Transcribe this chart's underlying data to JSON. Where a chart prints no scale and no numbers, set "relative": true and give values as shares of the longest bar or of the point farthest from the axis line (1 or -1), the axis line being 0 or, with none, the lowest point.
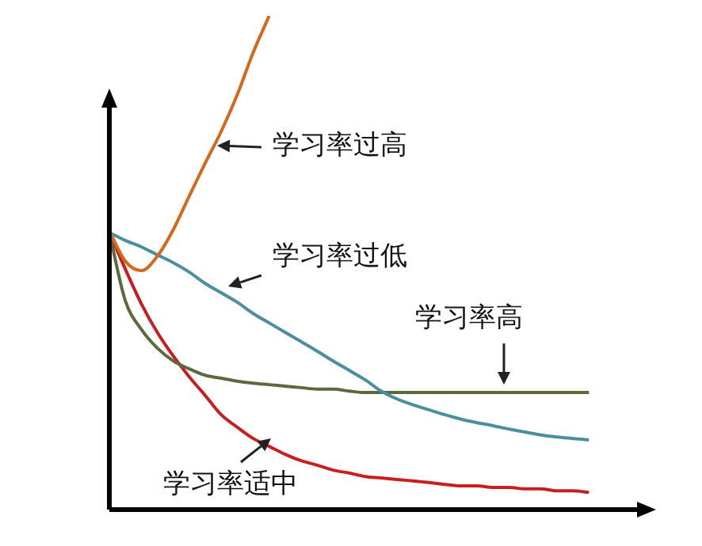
{
  "chart_data": {
    "type": "line",
    "relative": true,
    "legend": false,
    "marker": "none",
    "line_style": "solid",
    "categories": [
      null,
      null,
      null,
      null,
      null,
      null,
      null,
      null,
      null,
      null,
      null,
      null,
      null,
      null,
      null,
      null,
      null,
      null,
      null,
      null,
      null,
      null,
      null,
      null,
      null,
      null,
      null,
      null,
      null,
      null,
      null,
      null,
      null,
      null,
      null
    ],
    "series": [
      {
        "color": "#d4691c",
        "values": [
          0.564,
          0.503,
          0.484,
          0.513,
          0.567,
          0.635,
          0.702,
          0.766,
          0.84,
          0.926,
          1.0,
          null,
          null,
          null,
          null,
          null,
          null,
          null,
          null,
          null,
          null,
          null,
          null,
          null,
          null,
          null,
          null,
          null,
          null,
          null,
          null,
          null,
          null,
          null,
          null
        ]
      },
      {
        "color": "#4a8fa0",
        "values": [
          0.561,
          0.545,
          0.532,
          0.516,
          0.5,
          0.481,
          0.458,
          0.439,
          0.42,
          0.397,
          0.378,
          0.359,
          0.34,
          0.321,
          0.301,
          0.282,
          0.263,
          0.24,
          0.224,
          0.212,
          0.202,
          0.192,
          0.183,
          0.176,
          0.17,
          0.163,
          0.157,
          0.151,
          0.147,
          0.144,
          0.141,
          null,
          null,
          null,
          null
        ]
      },
      {
        "color": "#5b6a3c",
        "values": [
          0.561,
          0.423,
          0.365,
          0.327,
          0.301,
          0.285,
          0.272,
          0.266,
          0.26,
          0.256,
          0.253,
          0.25,
          0.247,
          0.244,
          0.244,
          0.24,
          0.237,
          0.237,
          0.237,
          0.237,
          0.237,
          0.237,
          0.237,
          0.237,
          0.237,
          0.237,
          0.237,
          0.237,
          0.237,
          0.237,
          0.237,
          null,
          null,
          null,
          null
        ]
      },
      {
        "color": "#c81e1e",
        "values": [
          0.561,
          0.487,
          0.417,
          0.359,
          0.311,
          0.269,
          0.231,
          0.192,
          0.167,
          0.144,
          0.128,
          0.112,
          0.099,
          0.09,
          0.08,
          0.074,
          0.067,
          0.064,
          0.061,
          0.058,
          0.055,
          0.051,
          0.048,
          0.048,
          0.045,
          0.045,
          0.042,
          0.042,
          0.038,
          0.038,
          0.035,
          null,
          null,
          null,
          null
        ]
      }
    ],
    "annotations": [
      "学习率过高",
      "学习率过低",
      "学习率高",
      "学习率适中"
    ]
  }
}
